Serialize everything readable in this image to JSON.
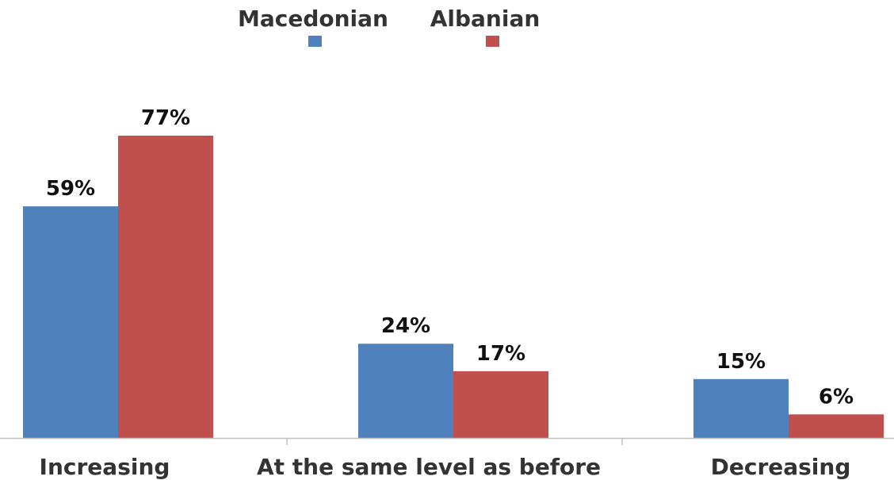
{
  "chart_data": {
    "type": "bar",
    "categories": [
      "Increasing",
      "At the same level as before",
      "Decreasing"
    ],
    "series": [
      {
        "name": "Macedonian",
        "values": [
          59,
          24,
          15
        ],
        "color": "#4F81BD",
        "labels": [
          "59%",
          "24%",
          "15%"
        ]
      },
      {
        "name": "Albanian",
        "values": [
          77,
          17,
          6
        ],
        "color": "#C0504D",
        "labels": [
          "77%",
          "17%",
          "6%"
        ]
      }
    ],
    "ylim": [
      0,
      100
    ],
    "grid": false,
    "legend": "top-center",
    "axis_color": "#BFBFBF"
  }
}
